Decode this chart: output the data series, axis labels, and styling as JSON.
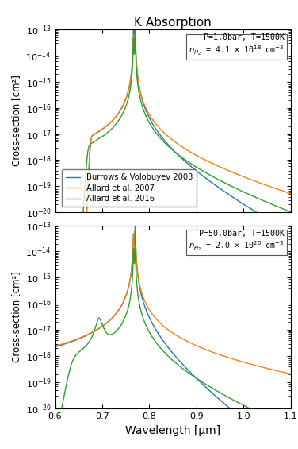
{
  "title": "K Absorption",
  "xlabel": "Wavelength [μm]",
  "ylabel": "Cross-section [cm²]",
  "xlim": [
    0.6,
    1.1
  ],
  "top_annotation": "P=1.0bar, T=1500K\n$n_{H_2}$ = 4.1 × 10$^{18}$ cm$^{-3}$",
  "bot_annotation": "P=50.0bar, T=1500K\n$n_{H_2}$ = 2.0 × 10$^{20}$ cm$^{-3}$",
  "legend_labels": [
    "Burrows & Volobuyev 2003",
    "Allard et al. 2007",
    "Allard et al. 2016"
  ],
  "colors": [
    "#1f77b4",
    "#ff7f0e",
    "#2ca02c"
  ],
  "line_width": 1.0
}
